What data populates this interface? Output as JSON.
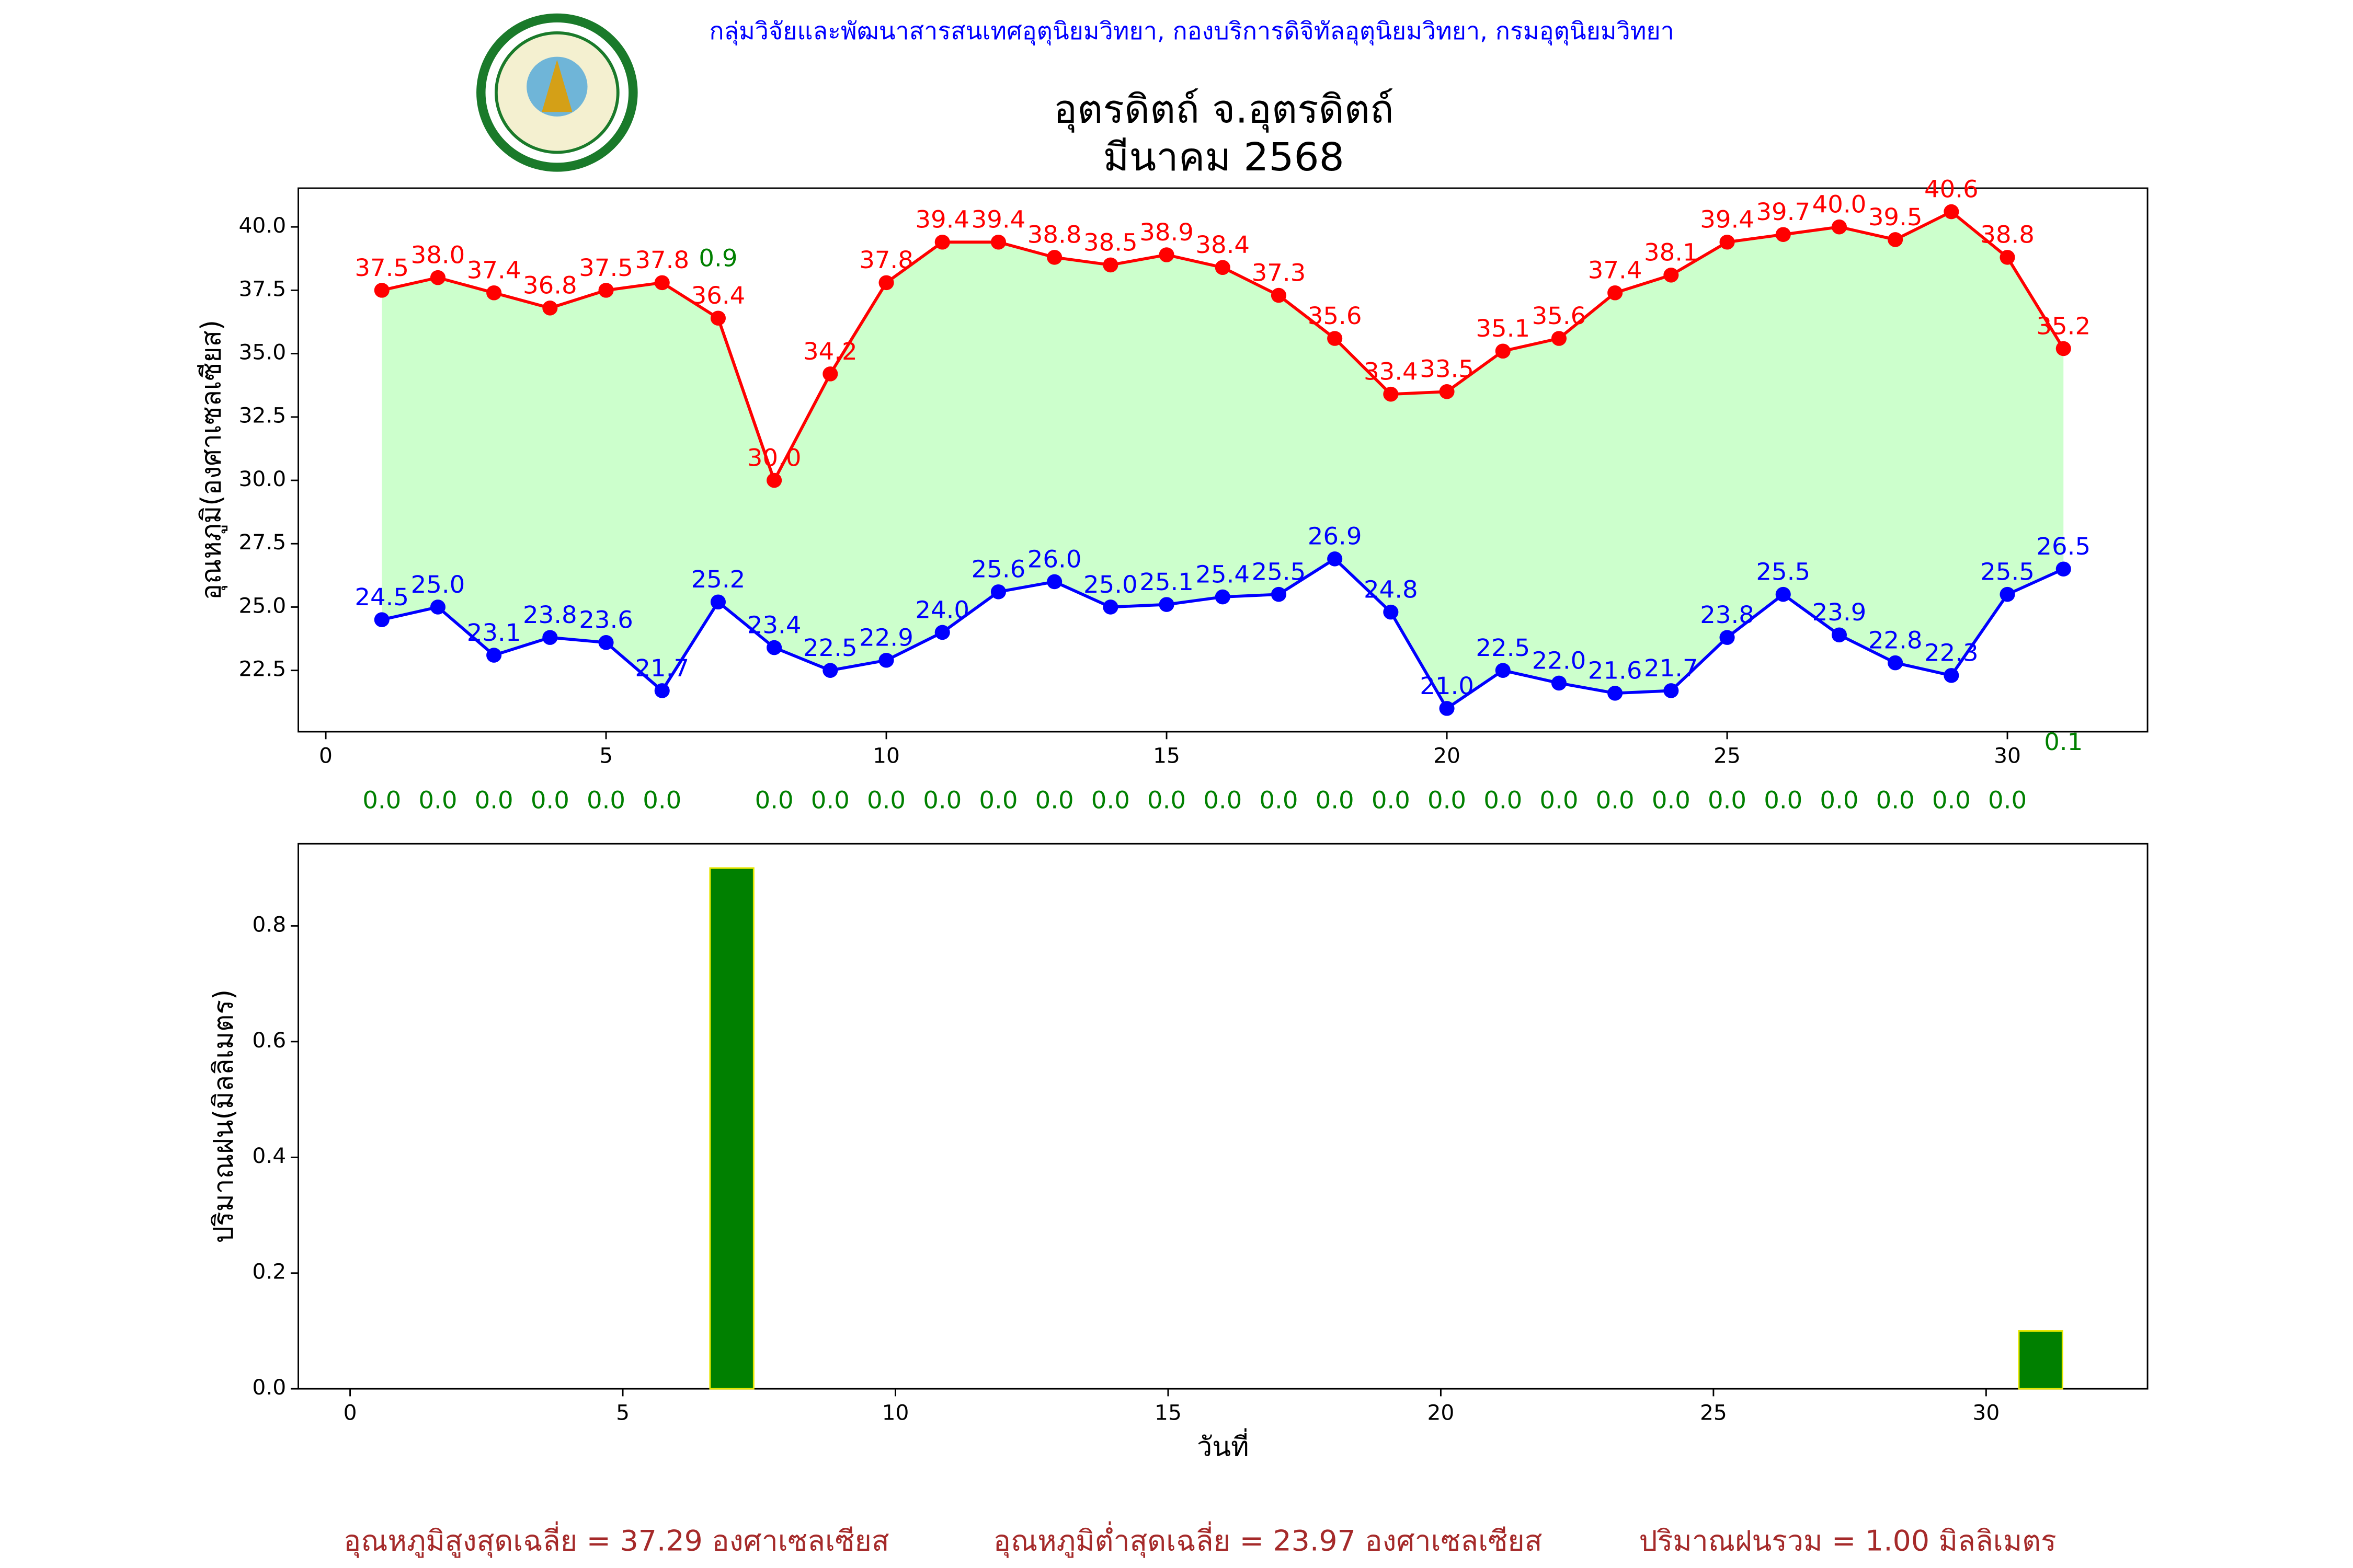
{
  "header": "กลุ่มวิจัยและพัฒนาสารสนเทศอุตุนิยมวิทยา, กองบริการดิจิทัลอุตุนิยมวิทยา, กรมอุตุนิยมวิทยา",
  "footer": [
    "อุณหภูมิสูงสุดเฉลี่ย = 37.29 องศาเซลเซียส",
    "อุณหภูมิต่ำสุดเฉลี่ย = 23.97 องศาเซลเซียส",
    "ปริมาณฝนรวม = 1.00 มิลลิเมตร"
  ],
  "chart_data": [
    {
      "type": "line",
      "title": "อุตรดิตถ์ จ.อุตรดิตถ์",
      "subtitle": "มีนาคม 2568",
      "y_label": "อุณหภูมิ(องศาเซลเซียส)",
      "x": [
        1,
        2,
        3,
        4,
        5,
        6,
        7,
        8,
        9,
        10,
        11,
        12,
        13,
        14,
        15,
        16,
        17,
        18,
        19,
        20,
        21,
        22,
        23,
        24,
        25,
        26,
        27,
        28,
        29,
        30,
        31
      ],
      "xlim": [
        -0.49,
        32.5
      ],
      "xticks": [
        0,
        5,
        10,
        15,
        20,
        25,
        30
      ],
      "ylim": [
        20.08,
        41.53
      ],
      "yticks": [
        22.5,
        {
          "value": 25,
          "label": "25.0"
        },
        27.5,
        {
          "value": 30,
          "label": "30.0"
        },
        32.5,
        {
          "value": 35,
          "label": "35.0"
        },
        37.5,
        {
          "value": 40,
          "label": "40.0"
        }
      ],
      "fill_color": "#ccffcc",
      "series": [
        {
          "name": "max",
          "color": "#ff0000",
          "values": [
            37.5,
            38.0,
            37.4,
            36.8,
            37.5,
            37.8,
            36.4,
            30.0,
            34.2,
            37.8,
            39.4,
            39.4,
            38.8,
            38.5,
            38.9,
            38.4,
            37.3,
            35.6,
            33.4,
            33.5,
            35.1,
            35.6,
            37.4,
            38.1,
            39.4,
            39.7,
            40.0,
            39.5,
            40.6,
            38.8,
            35.2
          ],
          "value_labels": [
            "37.5",
            "38.0",
            "37.4",
            "36.8",
            "37.5",
            "37.8",
            "36.4",
            "30.0",
            "34.2",
            "37.8",
            "39.4",
            "39.4",
            "38.8",
            "38.5",
            "38.9",
            "38.4",
            "37.3",
            "35.6",
            "33.4",
            "33.5",
            "35.1",
            "35.6",
            "37.4",
            "38.1",
            "39.4",
            "39.7",
            "40.0",
            "39.5",
            "40.6",
            "38.8",
            "35.2"
          ]
        },
        {
          "name": "min",
          "color": "#0000ff",
          "values": [
            24.5,
            25.0,
            23.1,
            23.8,
            23.6,
            21.7,
            25.2,
            23.4,
            22.5,
            22.9,
            24.0,
            25.6,
            26.0,
            25.0,
            25.1,
            25.4,
            25.5,
            26.9,
            24.8,
            21.0,
            22.5,
            22.0,
            21.6,
            21.7,
            23.8,
            25.5,
            23.9,
            22.8,
            22.3,
            25.5,
            26.5
          ],
          "value_labels": [
            "24.5",
            "25.0",
            "23.1",
            "23.8",
            "23.6",
            "21.7",
            "25.2",
            "23.4",
            "22.5",
            "22.9",
            "24.0",
            "25.6",
            "26.0",
            "25.0",
            "25.1",
            "25.4",
            "25.5",
            "26.9",
            "24.8",
            "21.0",
            "22.5",
            "22.0",
            "21.6",
            "21.7",
            "23.8",
            "25.5",
            "23.9",
            "22.8",
            "22.3",
            "25.5",
            "26.5"
          ]
        }
      ]
    },
    {
      "type": "bar",
      "y_label": "ปริมาณฝน(มิลลิเมตร)",
      "x_label": "วันที่",
      "color": "#008000",
      "edge_color": "#e6e600",
      "label_color": "#008000",
      "x": [
        1,
        2,
        3,
        4,
        5,
        6,
        7,
        8,
        9,
        10,
        11,
        12,
        13,
        14,
        15,
        16,
        17,
        18,
        19,
        20,
        21,
        22,
        23,
        24,
        25,
        26,
        27,
        28,
        29,
        30,
        31
      ],
      "values": [
        0,
        0,
        0,
        0,
        0,
        0,
        0.9,
        0,
        0,
        0,
        0,
        0,
        0,
        0,
        0,
        0,
        0,
        0,
        0,
        0,
        0,
        0,
        0,
        0,
        0,
        0,
        0,
        0,
        0,
        0,
        0.1
      ],
      "value_labels": [
        "0.0",
        "0.0",
        "0.0",
        "0.0",
        "0.0",
        "0.0",
        "0.9",
        "0.0",
        "0.0",
        "0.0",
        "0.0",
        "0.0",
        "0.0",
        "0.0",
        "0.0",
        "0.0",
        "0.0",
        "0.0",
        "0.0",
        "0.0",
        "0.0",
        "0.0",
        "0.0",
        "0.0",
        "0.0",
        "0.0",
        "0.0",
        "0.0",
        "0.0",
        "0.0",
        "0.1"
      ],
      "xlim": [
        -0.95,
        32.96
      ],
      "xticks": [
        0,
        5,
        10,
        15,
        20,
        25,
        30
      ],
      "ylim": [
        0,
        0.942
      ],
      "yticks": [
        {
          "value": 0,
          "label": "0.0"
        },
        0.2,
        0.4,
        0.6,
        0.8
      ]
    }
  ]
}
